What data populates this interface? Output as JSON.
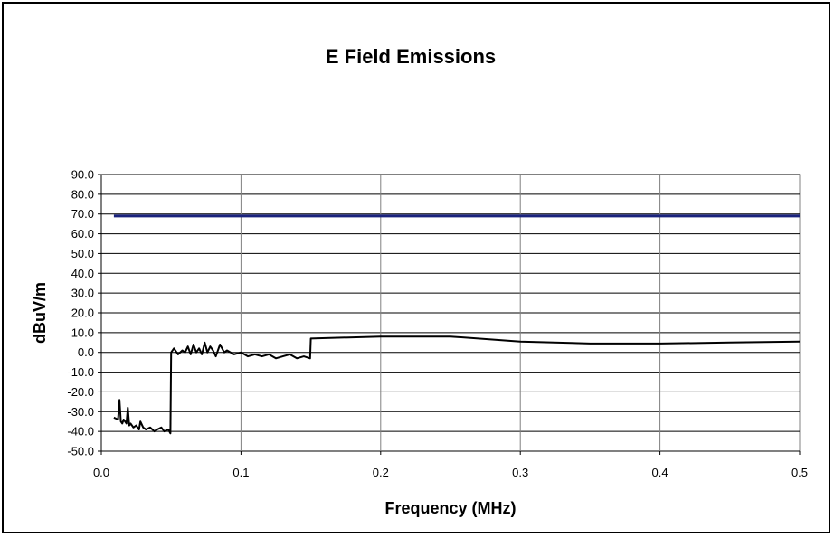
{
  "chart_data": {
    "type": "line",
    "title": "E Field Emissions",
    "xlabel": "Frequency (MHz)",
    "ylabel": "dBuV/m",
    "xlim": [
      0.0,
      0.5
    ],
    "ylim": [
      -50.0,
      90.0
    ],
    "x_ticks": [
      "0.0",
      "0.1",
      "0.2",
      "0.3",
      "0.4",
      "0.5"
    ],
    "y_ticks": [
      "90.0",
      "80.0",
      "70.0",
      "60.0",
      "50.0",
      "40.0",
      "30.0",
      "20.0",
      "10.0",
      "0.0",
      "-10.0",
      "-20.0",
      "-30.0",
      "-40.0",
      "-50.0"
    ],
    "grid": true,
    "legend": "none",
    "series": [
      {
        "color": "#1a237e",
        "x": [
          0.009,
          0.5
        ],
        "y": [
          69.0,
          69.0
        ]
      },
      {
        "color": "#000000",
        "x": [
          0.009,
          0.012,
          0.013,
          0.014,
          0.015,
          0.016,
          0.018,
          0.019,
          0.02,
          0.021,
          0.023,
          0.025,
          0.027,
          0.028,
          0.03,
          0.032,
          0.035,
          0.038,
          0.04,
          0.043,
          0.045,
          0.048,
          0.0495,
          0.05,
          0.052,
          0.055,
          0.058,
          0.06,
          0.062,
          0.064,
          0.066,
          0.068,
          0.07,
          0.072,
          0.074,
          0.076,
          0.078,
          0.08,
          0.082,
          0.085,
          0.088,
          0.09,
          0.095,
          0.1,
          0.105,
          0.11,
          0.115,
          0.12,
          0.125,
          0.13,
          0.135,
          0.14,
          0.145,
          0.1495,
          0.15,
          0.2,
          0.25,
          0.3,
          0.35,
          0.4,
          0.45,
          0.5
        ],
        "y": [
          -33.0,
          -34.0,
          -24.0,
          -35.0,
          -36.0,
          -34.0,
          -36.0,
          -28.0,
          -37.0,
          -36.0,
          -38.0,
          -37.0,
          -39.0,
          -35.0,
          -38.0,
          -39.0,
          -38.0,
          -40.0,
          -39.0,
          -38.0,
          -40.0,
          -39.0,
          -41.0,
          0.0,
          2.0,
          -1.0,
          1.0,
          0.0,
          3.0,
          -1.0,
          4.0,
          0.0,
          2.0,
          -1.0,
          5.0,
          0.0,
          3.0,
          1.0,
          -2.0,
          4.0,
          0.0,
          1.0,
          -1.0,
          0.0,
          -2.0,
          -1.0,
          -2.0,
          -1.0,
          -3.0,
          -2.0,
          -1.0,
          -3.0,
          -2.0,
          -3.0,
          7.0,
          8.0,
          8.0,
          5.5,
          4.5,
          4.5,
          5.0,
          5.5
        ]
      }
    ]
  }
}
